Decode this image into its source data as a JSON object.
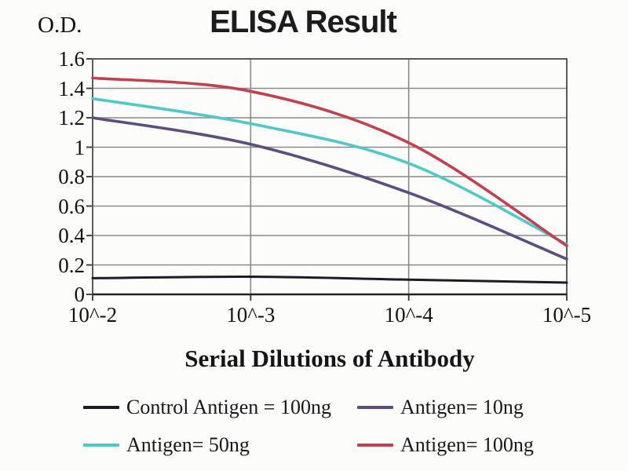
{
  "chart_data": {
    "type": "line",
    "title": "ELISA Result",
    "ylabel": "O.D.",
    "xlabel": "Serial Dilutions of Antibody",
    "x_categories": [
      "10^-2",
      "10^-3",
      "10^-4",
      "10^-5"
    ],
    "y_ticks": [
      0,
      0.2,
      0.4,
      0.6,
      0.8,
      1,
      1.2,
      1.4,
      1.6
    ],
    "y_tick_labels": [
      "0",
      "0.2",
      "0.4",
      "0.6",
      "0.8",
      "1",
      "1.2",
      "1.4",
      "1.6"
    ],
    "ylim": [
      0,
      1.6
    ],
    "grid": true,
    "legend_position": "bottom",
    "series": [
      {
        "name": "Control Antigen = 100ng",
        "color": "#1c1c24",
        "values": [
          0.11,
          0.12,
          0.1,
          0.08
        ]
      },
      {
        "name": "Antigen= 10ng",
        "color": "#5e4d82",
        "values": [
          1.2,
          1.02,
          0.69,
          0.24
        ]
      },
      {
        "name": "Antigen= 50ng",
        "color": "#4fc9c7",
        "values": [
          1.33,
          1.16,
          0.89,
          0.34
        ]
      },
      {
        "name": "Antigen= 100ng",
        "color": "#c4404f",
        "values": [
          1.47,
          1.38,
          1.03,
          0.33
        ]
      }
    ]
  }
}
